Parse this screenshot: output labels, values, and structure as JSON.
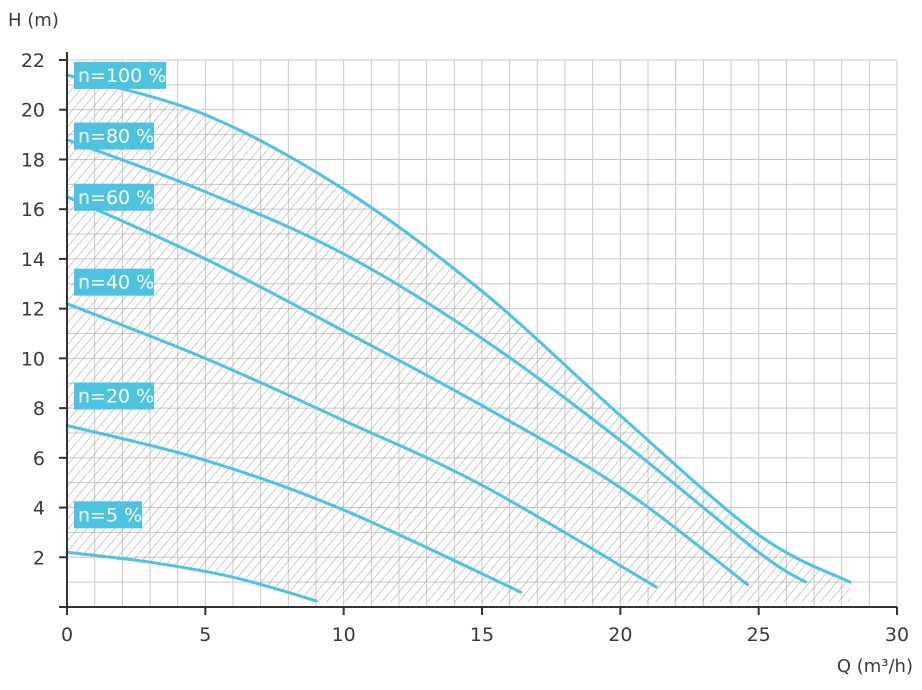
{
  "chart_data": {
    "type": "line",
    "title": "",
    "xlabel": "Q (m³/h)",
    "ylabel": "H (m)",
    "xlim": [
      0,
      30
    ],
    "ylim": [
      0,
      22
    ],
    "x_ticks": [
      0,
      5,
      10,
      15,
      20,
      25,
      30
    ],
    "y_ticks": [
      2,
      4,
      6,
      8,
      10,
      12,
      14,
      16,
      18,
      20,
      22
    ],
    "grid": true,
    "operating_range_hatched": true,
    "line_color": "#4ec3e0",
    "series": [
      {
        "name": "n=100 %",
        "x": [
          0,
          5,
          10,
          15,
          20,
          25,
          28.3
        ],
        "y": [
          21.4,
          19.8,
          16.8,
          12.7,
          7.7,
          2.9,
          1.0
        ]
      },
      {
        "name": "n=80 %",
        "x": [
          0,
          5,
          10,
          15,
          20,
          25,
          26.7
        ],
        "y": [
          18.8,
          16.7,
          14.2,
          10.8,
          6.7,
          2.2,
          1.0
        ]
      },
      {
        "name": "n=60 %",
        "x": [
          0,
          5,
          10,
          15,
          20,
          24.6
        ],
        "y": [
          16.5,
          14.0,
          11.1,
          8.1,
          4.8,
          0.9
        ]
      },
      {
        "name": "n=40 %",
        "x": [
          0,
          5,
          10,
          15,
          21.3
        ],
        "y": [
          12.2,
          10.0,
          7.5,
          4.9,
          0.8
        ]
      },
      {
        "name": "n=20 %",
        "x": [
          0,
          5,
          10,
          16.4
        ],
        "y": [
          7.3,
          5.9,
          3.9,
          0.6
        ]
      },
      {
        "name": "n=5 %",
        "x": [
          0,
          3,
          6,
          9.0
        ],
        "y": [
          2.2,
          1.8,
          1.2,
          0.25
        ]
      }
    ]
  }
}
